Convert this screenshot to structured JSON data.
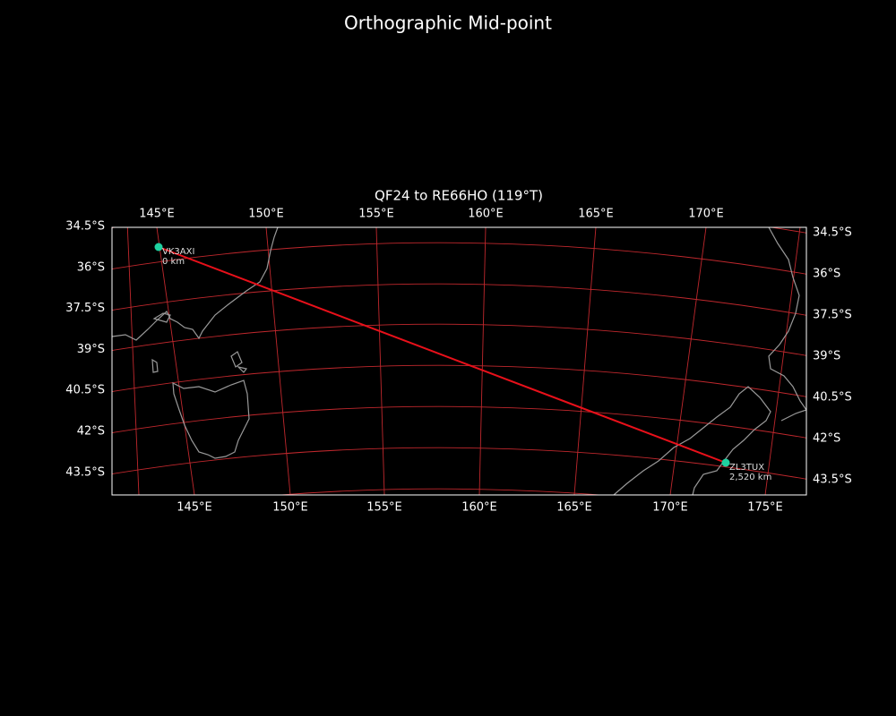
{
  "title": "Orthographic Mid-point",
  "map": {
    "title": "QF24 to RE66HO (119°T)",
    "top_ticks": [
      "145°E",
      "150°E",
      "155°E",
      "160°E",
      "165°E",
      "170°E"
    ],
    "bottom_ticks": [
      "145°E",
      "150°E",
      "155°E",
      "160°E",
      "165°E",
      "170°E",
      "175°E"
    ],
    "left_ticks": [
      "34.5°S",
      "36°S",
      "37.5°S",
      "39°S",
      "40.5°S",
      "42°S",
      "43.5°S"
    ],
    "right_ticks": [
      "34.5°S",
      "36°S",
      "37.5°S",
      "39°S",
      "40.5°S",
      "42°S",
      "43.5°S"
    ],
    "stations": [
      {
        "name": "VK3AXI",
        "distance": "0 km"
      },
      {
        "name": "ZL3TUX",
        "distance": "2,520 km"
      }
    ]
  }
}
